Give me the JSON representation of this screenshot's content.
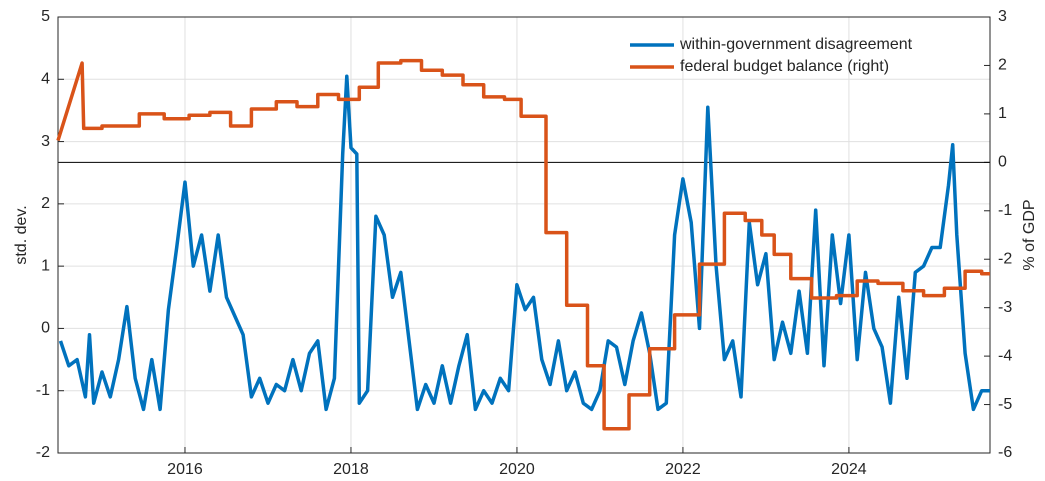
{
  "chart_data": {
    "type": "line",
    "xlim": [
      2014.47,
      2025.7
    ],
    "xticks": [
      2016,
      2018,
      2020,
      2022,
      2024
    ],
    "ylim": [
      -2,
      5
    ],
    "yticks": [
      -2,
      -1,
      0,
      1,
      2,
      3,
      4,
      5
    ],
    "y2lim": [
      -6,
      3
    ],
    "y2ticks": [
      -6,
      -5,
      -4,
      -3,
      -2,
      -1,
      0,
      1,
      2,
      3
    ],
    "ylabel": "std. dev.",
    "y2label": "% of GDP",
    "grid": true,
    "legend": "upper right",
    "series": [
      {
        "name": "within-government disagreement",
        "color": "#0072bd",
        "axis": "y",
        "x": [
          2014.5,
          2014.6,
          2014.7,
          2014.8,
          2014.85,
          2014.9,
          2015.0,
          2015.1,
          2015.2,
          2015.3,
          2015.4,
          2015.5,
          2015.6,
          2015.7,
          2015.8,
          2015.9,
          2016.0,
          2016.1,
          2016.2,
          2016.3,
          2016.4,
          2016.5,
          2016.6,
          2016.7,
          2016.8,
          2016.9,
          2017.0,
          2017.1,
          2017.2,
          2017.3,
          2017.4,
          2017.5,
          2017.6,
          2017.7,
          2017.8,
          2017.9,
          2017.95,
          2018.0,
          2018.07,
          2018.1,
          2018.2,
          2018.3,
          2018.4,
          2018.5,
          2018.6,
          2018.7,
          2018.8,
          2018.9,
          2019.0,
          2019.1,
          2019.2,
          2019.3,
          2019.4,
          2019.5,
          2019.6,
          2019.7,
          2019.8,
          2019.9,
          2020.0,
          2020.1,
          2020.2,
          2020.3,
          2020.4,
          2020.5,
          2020.6,
          2020.7,
          2020.8,
          2020.9,
          2021.0,
          2021.1,
          2021.2,
          2021.3,
          2021.4,
          2021.5,
          2021.6,
          2021.7,
          2021.8,
          2021.9,
          2022.0,
          2022.1,
          2022.2,
          2022.3,
          2022.4,
          2022.5,
          2022.6,
          2022.7,
          2022.8,
          2022.9,
          2023.0,
          2023.1,
          2023.2,
          2023.3,
          2023.4,
          2023.5,
          2023.6,
          2023.7,
          2023.8,
          2023.9,
          2024.0,
          2024.1,
          2024.2,
          2024.3,
          2024.4,
          2024.5,
          2024.6,
          2024.7,
          2024.8,
          2024.9,
          2025.0,
          2025.1,
          2025.2,
          2025.25,
          2025.3,
          2025.4,
          2025.5,
          2025.6,
          2025.7
        ],
        "values": [
          -0.2,
          -0.6,
          -0.5,
          -1.1,
          -0.1,
          -1.2,
          -0.7,
          -1.1,
          -0.5,
          0.35,
          -0.8,
          -1.3,
          -0.5,
          -1.3,
          0.3,
          1.3,
          2.35,
          1.0,
          1.5,
          0.6,
          1.5,
          0.5,
          0.2,
          -0.1,
          -1.1,
          -0.8,
          -1.2,
          -0.9,
          -1.0,
          -0.5,
          -1.0,
          -0.4,
          -0.2,
          -1.3,
          -0.8,
          2.8,
          4.05,
          2.9,
          2.8,
          -1.2,
          -1.0,
          1.8,
          1.5,
          0.5,
          0.9,
          -0.2,
          -1.3,
          -0.9,
          -1.2,
          -0.6,
          -1.2,
          -0.6,
          -0.1,
          -1.3,
          -1.0,
          -1.2,
          -0.8,
          -1.0,
          0.7,
          0.3,
          0.5,
          -0.5,
          -0.9,
          -0.2,
          -1.0,
          -0.7,
          -1.2,
          -1.3,
          -1.0,
          -0.2,
          -0.3,
          -0.9,
          -0.2,
          0.25,
          -0.4,
          -1.3,
          -1.2,
          1.5,
          2.4,
          1.7,
          0.0,
          3.55,
          1.0,
          -0.5,
          -0.2,
          -1.1,
          1.7,
          0.7,
          1.2,
          -0.5,
          0.1,
          -0.4,
          0.6,
          -0.4,
          1.9,
          -0.6,
          1.5,
          0.4,
          1.5,
          -0.5,
          0.9,
          0.0,
          -0.3,
          -1.2,
          0.5,
          -0.8,
          0.9,
          1.0,
          1.3,
          1.3,
          2.3,
          2.95,
          1.5,
          -0.4,
          -1.3,
          -1.0,
          -1.0
        ]
      },
      {
        "name": "federal budget balance (right)",
        "color": "#d95319",
        "axis": "y2",
        "x": [
          2014.47,
          2014.76,
          2014.78,
          2015.0,
          2015.0,
          2015.45,
          2015.45,
          2015.75,
          2015.75,
          2016.05,
          2016.05,
          2016.3,
          2016.3,
          2016.55,
          2016.55,
          2016.8,
          2016.8,
          2017.1,
          2017.1,
          2017.35,
          2017.35,
          2017.6,
          2017.6,
          2017.85,
          2017.85,
          2018.1,
          2018.1,
          2018.33,
          2018.33,
          2018.6,
          2018.6,
          2018.85,
          2018.85,
          2019.1,
          2019.1,
          2019.35,
          2019.35,
          2019.6,
          2019.6,
          2019.85,
          2019.85,
          2020.05,
          2020.05,
          2020.35,
          2020.35,
          2020.6,
          2020.6,
          2020.85,
          2020.85,
          2021.05,
          2021.05,
          2021.35,
          2021.35,
          2021.6,
          2021.6,
          2021.9,
          2021.9,
          2022.2,
          2022.2,
          2022.5,
          2022.5,
          2022.75,
          2022.75,
          2022.95,
          2022.95,
          2023.1,
          2023.1,
          2023.3,
          2023.3,
          2023.55,
          2023.55,
          2023.85,
          2023.85,
          2024.1,
          2024.1,
          2024.35,
          2024.35,
          2024.65,
          2024.65,
          2024.9,
          2024.9,
          2025.15,
          2025.15,
          2025.4,
          2025.4,
          2025.6,
          2025.6,
          2025.7
        ],
        "values": [
          0.45,
          2.05,
          0.7,
          0.7,
          0.75,
          0.75,
          1.0,
          1.0,
          0.9,
          0.9,
          0.97,
          0.97,
          1.03,
          1.03,
          0.75,
          0.75,
          1.1,
          1.1,
          1.25,
          1.25,
          1.15,
          1.15,
          1.4,
          1.4,
          1.3,
          1.3,
          1.55,
          1.55,
          2.05,
          2.05,
          2.1,
          2.1,
          1.9,
          1.9,
          1.8,
          1.8,
          1.6,
          1.6,
          1.35,
          1.35,
          1.3,
          1.3,
          0.95,
          0.95,
          -1.45,
          -1.45,
          -2.95,
          -2.95,
          -4.2,
          -4.2,
          -5.5,
          -5.5,
          -4.8,
          -4.8,
          -3.85,
          -3.85,
          -3.15,
          -3.15,
          -2.1,
          -2.1,
          -1.05,
          -1.05,
          -1.2,
          -1.2,
          -1.5,
          -1.5,
          -1.9,
          -1.9,
          -2.4,
          -2.4,
          -2.8,
          -2.8,
          -2.75,
          -2.75,
          -2.45,
          -2.45,
          -2.5,
          -2.5,
          -2.65,
          -2.65,
          -2.75,
          -2.75,
          -2.6,
          -2.6,
          -2.25,
          -2.25,
          -2.3,
          -2.3
        ]
      }
    ]
  }
}
